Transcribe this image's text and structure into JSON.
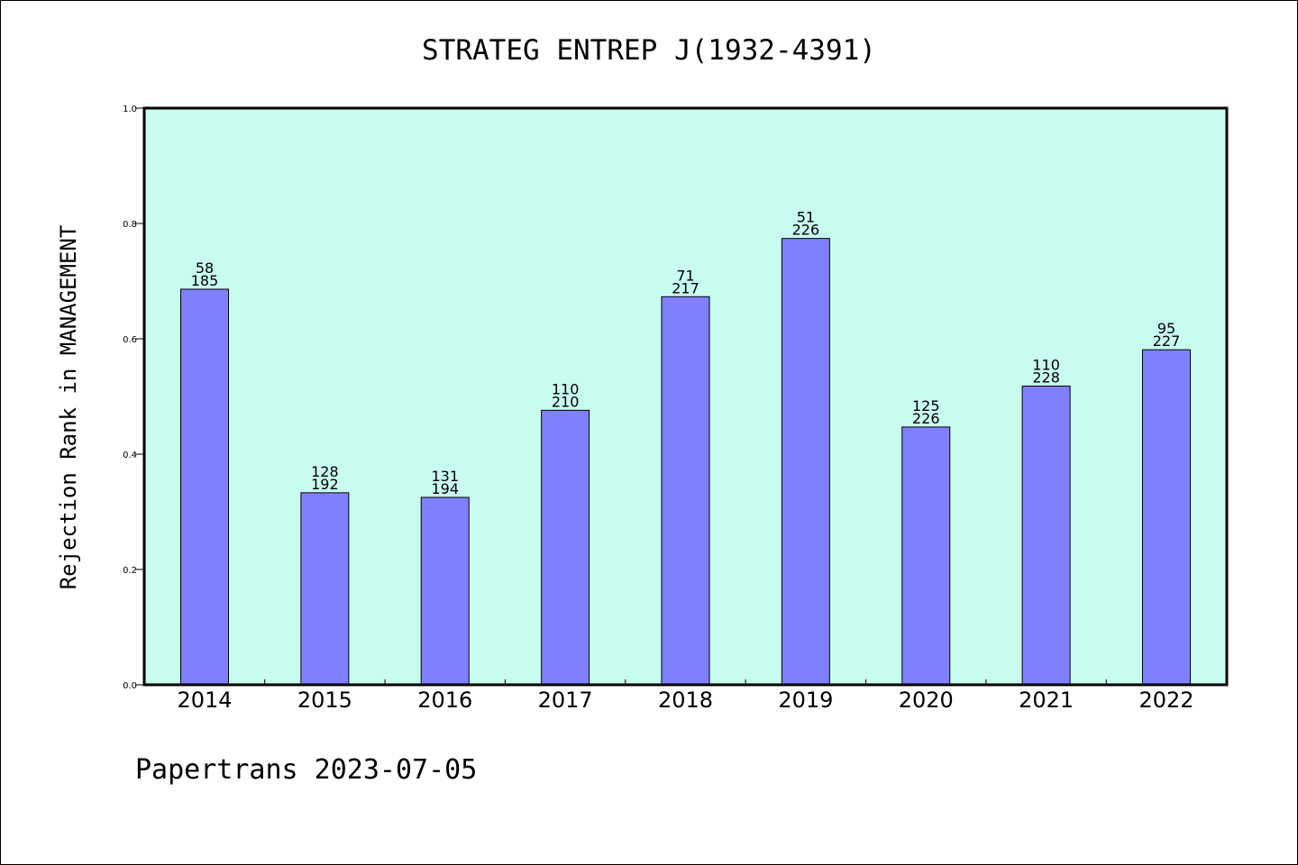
{
  "chart_data": {
    "type": "bar",
    "title": "STRATEG ENTREP J(1932-4391)",
    "xlabel": "",
    "ylabel": "Rejection Rank in MANAGEMENT",
    "footer": "Papertrans 2023-07-05",
    "ylim": [
      0,
      1.0
    ],
    "yticks": [
      "0.0",
      "0.2",
      "0.4",
      "0.6",
      "0.8",
      "1.0"
    ],
    "grid": false,
    "categories": [
      "2014",
      "2015",
      "2016",
      "2017",
      "2018",
      "2019",
      "2020",
      "2021",
      "2022"
    ],
    "values": [
      0.686,
      0.333,
      0.325,
      0.476,
      0.673,
      0.774,
      0.447,
      0.518,
      0.581
    ],
    "labels_top": [
      "58",
      "128",
      "131",
      "110",
      "71",
      "51",
      "125",
      "110",
      "95"
    ],
    "labels_bottom": [
      "185",
      "192",
      "194",
      "210",
      "217",
      "226",
      "226",
      "228",
      "227"
    ],
    "colors": {
      "plot_background": "#c8fcee",
      "bar_fill": "#8080ff",
      "bar_stroke": "#000000"
    }
  }
}
